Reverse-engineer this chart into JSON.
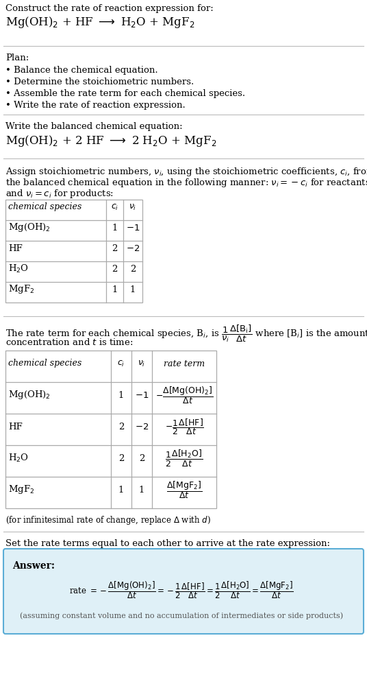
{
  "bg_color": "#ffffff",
  "text_color": "#000000",
  "title_line1": "Construct the rate of reaction expression for:",
  "title_eq": "Mg(OH)$_2$ + HF $\\longrightarrow$ H$_2$O + MgF$_2$",
  "plan_header": "Plan:",
  "plan_items": [
    "• Balance the chemical equation.",
    "• Determine the stoichiometric numbers.",
    "• Assemble the rate term for each chemical species.",
    "• Write the rate of reaction expression."
  ],
  "balanced_header": "Write the balanced chemical equation:",
  "balanced_eq": "Mg(OH)$_2$ + 2 HF $\\longrightarrow$ 2 H$_2$O + MgF$_2$",
  "stoich_intro1": "Assign stoichiometric numbers, $\\nu_i$, using the stoichiometric coefficients, $c_i$, from",
  "stoich_intro2": "the balanced chemical equation in the following manner: $\\nu_i = -c_i$ for reactants",
  "stoich_intro3": "and $\\nu_i = c_i$ for products:",
  "table1_headers": [
    "chemical species",
    "$c_i$",
    "$\\nu_i$"
  ],
  "table1_rows": [
    [
      "Mg(OH)$_2$",
      "1",
      "$-1$"
    ],
    [
      "HF",
      "2",
      "$-2$"
    ],
    [
      "H$_2$O",
      "2",
      "2"
    ],
    [
      "MgF$_2$",
      "1",
      "1"
    ]
  ],
  "rate_intro1": "The rate term for each chemical species, B$_i$, is $\\dfrac{1}{\\nu_i}\\dfrac{\\Delta[\\mathrm{B_i}]}{\\Delta t}$ where [B$_i$] is the amount",
  "rate_intro2": "concentration and $t$ is time:",
  "table2_headers": [
    "chemical species",
    "$c_i$",
    "$\\nu_i$",
    "rate term"
  ],
  "table2_rows": [
    [
      "Mg(OH)$_2$",
      "1",
      "$-1$",
      "$-\\dfrac{\\Delta[\\mathrm{Mg(OH)_2}]}{\\Delta t}$"
    ],
    [
      "HF",
      "2",
      "$-2$",
      "$-\\dfrac{1}{2}\\dfrac{\\Delta[\\mathrm{HF}]}{\\Delta t}$"
    ],
    [
      "H$_2$O",
      "2",
      "2",
      "$\\dfrac{1}{2}\\dfrac{\\Delta[\\mathrm{H_2O}]}{\\Delta t}$"
    ],
    [
      "MgF$_2$",
      "1",
      "1",
      "$\\dfrac{\\Delta[\\mathrm{MgF_2}]}{\\Delta t}$"
    ]
  ],
  "infinitesimal_note": "(for infinitesimal rate of change, replace $\\Delta$ with $d$)",
  "set_equal_text": "Set the rate terms equal to each other to arrive at the rate expression:",
  "answer_box_color": "#dff0f7",
  "answer_box_border": "#5badd6",
  "answer_label": "Answer:",
  "rate_expr": "rate $= -\\dfrac{\\Delta[\\mathrm{Mg(OH)_2}]}{\\Delta t} = -\\dfrac{1}{2}\\dfrac{\\Delta[\\mathrm{HF}]}{\\Delta t} = \\dfrac{1}{2}\\dfrac{\\Delta[\\mathrm{H_2O}]}{\\Delta t} = \\dfrac{\\Delta[\\mathrm{MgF_2}]}{\\Delta t}$",
  "assuming_note": "(assuming constant volume and no accumulation of intermediates or side products)",
  "hline_color": "#bbbbbb",
  "table_border_color": "#aaaaaa"
}
